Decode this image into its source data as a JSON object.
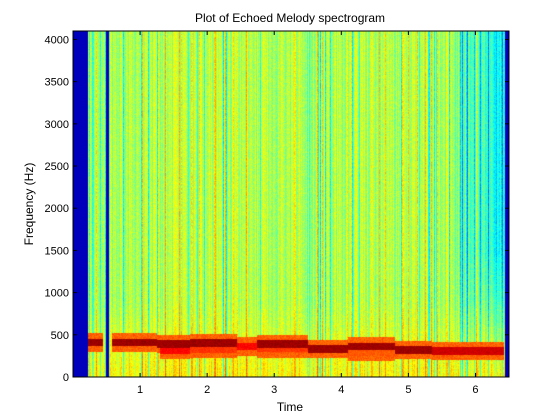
{
  "chart_data": {
    "type": "heatmap",
    "title": "Plot of Echoed Melody spectrogram",
    "xlabel": "Time",
    "ylabel": "Frequency (Hz)",
    "xlim": [
      0,
      6.5
    ],
    "ylim": [
      0,
      4100
    ],
    "xticks": [
      1,
      2,
      3,
      4,
      5,
      6
    ],
    "yticks": [
      0,
      500,
      1000,
      1500,
      2000,
      2500,
      3000,
      3500,
      4000
    ],
    "colormap": "jet",
    "silent_segments": [
      {
        "start": 0,
        "end": 0.22
      },
      {
        "start": 0.49,
        "end": 0.54
      },
      {
        "start": 6.44,
        "end": 6.5
      }
    ],
    "background_level": 0.55,
    "high_freq_fade_start": 5.5,
    "melody_notes": [
      {
        "start": 0.22,
        "end": 0.45,
        "freq": 410,
        "strength": 1.0
      },
      {
        "start": 0.58,
        "end": 1.25,
        "freq": 410,
        "strength": 1.0
      },
      {
        "start": 1.25,
        "end": 1.75,
        "freq": 390,
        "strength": 1.0
      },
      {
        "start": 1.3,
        "end": 1.75,
        "freq": 320,
        "strength": 0.9
      },
      {
        "start": 1.75,
        "end": 2.45,
        "freq": 400,
        "strength": 1.0
      },
      {
        "start": 1.75,
        "end": 2.45,
        "freq": 330,
        "strength": 0.85
      },
      {
        "start": 2.45,
        "end": 2.75,
        "freq": 360,
        "strength": 0.9
      },
      {
        "start": 2.75,
        "end": 3.5,
        "freq": 390,
        "strength": 1.0
      },
      {
        "start": 2.75,
        "end": 3.5,
        "freq": 340,
        "strength": 0.85
      },
      {
        "start": 3.5,
        "end": 4.1,
        "freq": 330,
        "strength": 1.0
      },
      {
        "start": 4.1,
        "end": 4.8,
        "freq": 360,
        "strength": 1.0
      },
      {
        "start": 4.1,
        "end": 4.8,
        "freq": 300,
        "strength": 0.8
      },
      {
        "start": 4.8,
        "end": 5.35,
        "freq": 320,
        "strength": 1.0
      },
      {
        "start": 5.35,
        "end": 5.9,
        "freq": 310,
        "strength": 0.95
      },
      {
        "start": 5.9,
        "end": 6.42,
        "freq": 310,
        "strength": 0.95
      }
    ]
  }
}
